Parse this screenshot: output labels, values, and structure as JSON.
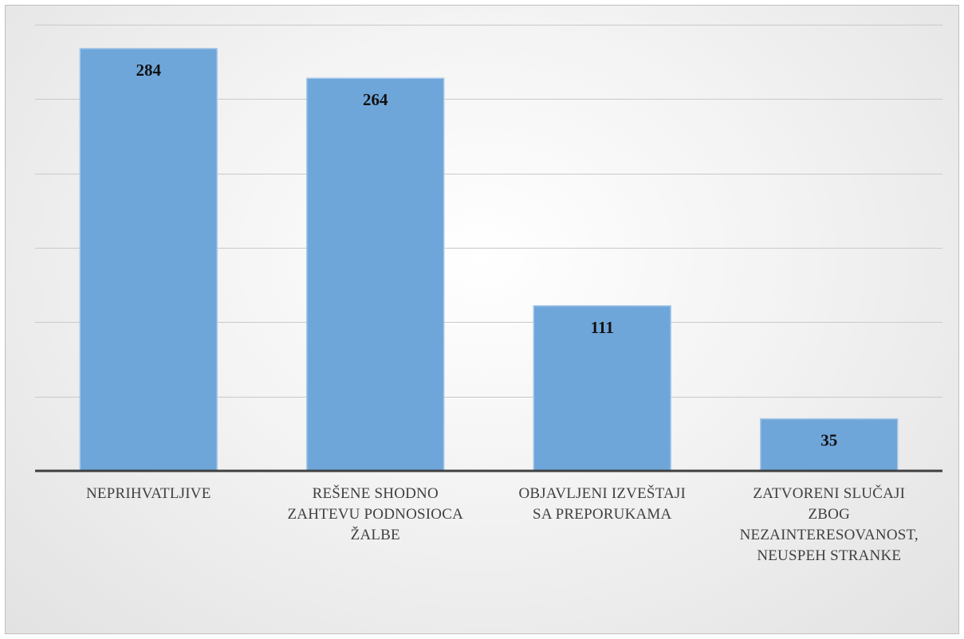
{
  "chart_data": {
    "type": "bar",
    "categories": [
      "NEPRIHVATLJIVE",
      "REŠENE SHODNO ZAHTEVU PODNOSIOCA ŽALBE",
      "OBJAVLJENI IZVEŠTAJI SA PREPORUKAMA",
      "ZATVORENI SLUČAJI ZBOG NEZAINTERESOVANOST, NEUSPEH STRANKE"
    ],
    "category_lines": [
      [
        "NEPRIHVATLJIVE"
      ],
      [
        "REŠENE SHODNO",
        "ZAHTEVU PODNOSIOCA",
        "ŽALBE"
      ],
      [
        "OBJAVLJENI IZVEŠTAJI",
        "SA PREPORUKAMA"
      ],
      [
        "ZATVORENI SLUČAJI",
        "ZBOG",
        "NEZAINTERESOVANOST,",
        "NEUSPEH STRANKE"
      ]
    ],
    "values": [
      284,
      264,
      111,
      35
    ],
    "data_labels": [
      "284",
      "264",
      "111",
      "35"
    ],
    "ylim": [
      0,
      300
    ],
    "gridlines": [
      50,
      100,
      150,
      200,
      250,
      300
    ],
    "grid": true,
    "legend": "none",
    "bar_color": "#6fa6da"
  }
}
